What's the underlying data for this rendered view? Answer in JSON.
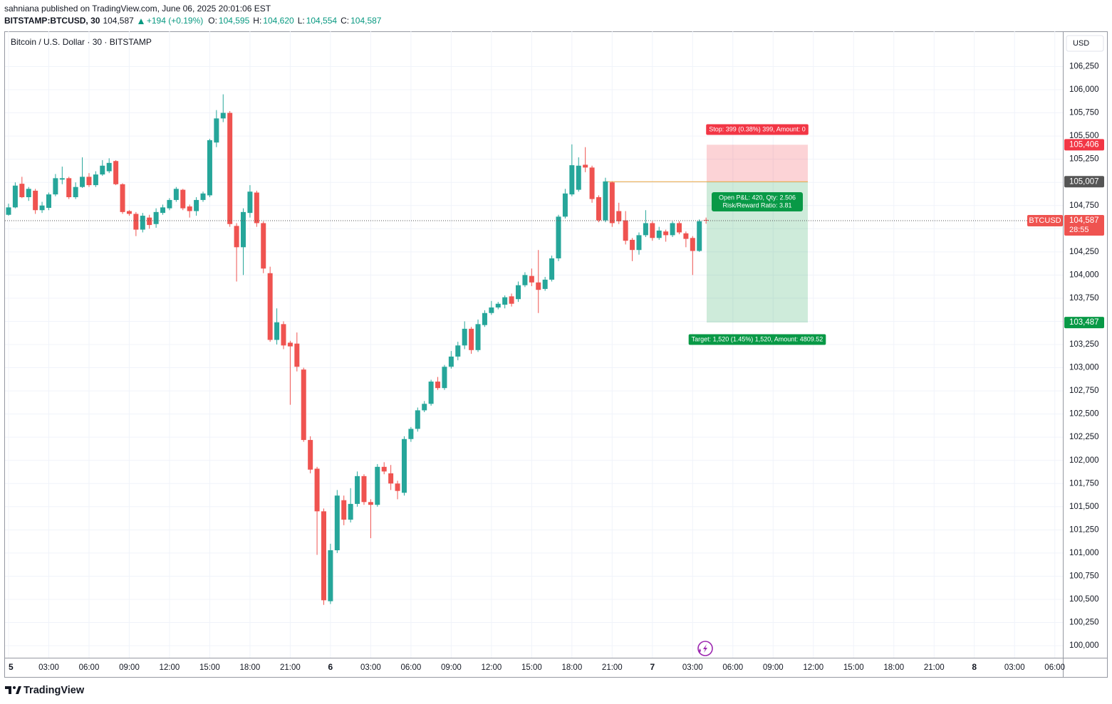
{
  "header": {
    "published": "sahniana published on TradingView.com, June 06, 2025 20:01:06 EST",
    "symbol": "BITSTAMP:BTCUSD, 30",
    "last": "104,587",
    "change": "+194 (+0.19%)",
    "ohlc": [
      {
        "key": "O:",
        "value": "104,595"
      },
      {
        "key": "H:",
        "value": "104,620"
      },
      {
        "key": "L:",
        "value": "104,554"
      },
      {
        "key": "C:",
        "value": "104,587"
      }
    ]
  },
  "chart_data": {
    "type": "candlestick",
    "title": "Bitcoin / U.S. Dollar · 30 · BITSTAMP",
    "currency": "USD",
    "up_color": "#26a69a",
    "down_color": "#ef5350",
    "grid": true,
    "open": [
      104650,
      104730,
      104985,
      104840,
      104910,
      104700,
      104725,
      104870,
      105030,
      105045,
      104840,
      104950,
      105060,
      104970,
      105085,
      105120,
      105230,
      104980,
      104690,
      104660,
      104490,
      104620,
      104550,
      104670,
      104720,
      104810,
      104920,
      104740,
      104690,
      104810,
      104860,
      105430,
      105690,
      105750,
      104530,
      104300,
      104670,
      104890,
      104560,
      104020,
      103300,
      103470,
      103270,
      103260,
      102980,
      102220,
      101910,
      101450,
      100480,
      101030,
      101570,
      101360,
      101530,
      101830,
      101550,
      101520,
      101930,
      101860,
      101750,
      101650,
      102230,
      102340,
      102540,
      102610,
      102850,
      102780,
      103010,
      103120,
      103240,
      103420,
      103190,
      103460,
      103590,
      103650,
      103680,
      103770,
      103740,
      103890,
      103990,
      103920,
      103850,
      103950,
      104180,
      104630,
      104870,
      104920,
      105190,
      105160,
      104840,
      104590,
      105000,
      104690,
      104590,
      104380,
      104270,
      104430,
      104560,
      104400,
      104470,
      104430,
      104560,
      104450,
      104400,
      104260,
      104595
    ],
    "high": [
      104770,
      105000,
      105060,
      104950,
      104930,
      104790,
      104890,
      105090,
      105170,
      105060,
      105000,
      105270,
      105100,
      105120,
      105240,
      105260,
      105240,
      104990,
      104700,
      104680,
      104670,
      104650,
      104720,
      104760,
      104830,
      104950,
      104930,
      104760,
      104840,
      104900,
      105470,
      105780,
      105950,
      105770,
      104560,
      104720,
      104970,
      104910,
      104580,
      104090,
      103640,
      103500,
      103290,
      103380,
      103000,
      102260,
      101930,
      101480,
      101100,
      101680,
      101620,
      101700,
      101880,
      101850,
      101580,
      101960,
      101980,
      101950,
      101780,
      102260,
      102360,
      102570,
      102640,
      102870,
      102900,
      103030,
      103180,
      103280,
      103500,
      103440,
      103520,
      103620,
      103720,
      103710,
      103780,
      103800,
      103930,
      104030,
      104070,
      104270,
      103980,
      104210,
      104650,
      104930,
      105410,
      105270,
      105380,
      105180,
      104860,
      105050,
      105010,
      104780,
      104690,
      104400,
      104460,
      104700,
      104580,
      104520,
      104490,
      104580,
      104580,
      104470,
      104420,
      104600,
      104620
    ],
    "low": [
      104640,
      104720,
      104830,
      104800,
      104660,
      104670,
      104700,
      104850,
      104980,
      104820,
      104820,
      104940,
      104950,
      104950,
      105070,
      105100,
      104970,
      104660,
      104640,
      104420,
      104460,
      104500,
      104510,
      104650,
      104700,
      104790,
      104700,
      104620,
      104640,
      104790,
      104840,
      105380,
      105650,
      104520,
      103930,
      104000,
      104620,
      104520,
      104020,
      103280,
      103250,
      103200,
      102600,
      102960,
      102200,
      101860,
      100980,
      100440,
      100450,
      101000,
      101300,
      101330,
      101500,
      101520,
      101160,
      101500,
      101850,
      101680,
      101580,
      101620,
      102200,
      102310,
      102520,
      102590,
      102760,
      102760,
      102990,
      103080,
      103200,
      103150,
      103170,
      103440,
      103570,
      103630,
      103640,
      103660,
      103710,
      103870,
      103880,
      103590,
      103830,
      103930,
      104150,
      104610,
      104850,
      104900,
      105110,
      104780,
      104570,
      104570,
      104520,
      104550,
      104330,
      104150,
      104220,
      104410,
      104370,
      104380,
      104360,
      104410,
      104440,
      104300,
      104000,
      104250,
      104554
    ],
    "close": [
      104730,
      104965,
      104840,
      104930,
      104700,
      104750,
      104870,
      105045,
      105045,
      104840,
      104950,
      105060,
      104970,
      105085,
      105180,
      105210,
      104980,
      104680,
      104660,
      104490,
      104640,
      104540,
      104680,
      104730,
      104810,
      104930,
      104720,
      104690,
      104810,
      104880,
      105455,
      105690,
      105750,
      104550,
      104300,
      104680,
      104900,
      104560,
      104070,
      103300,
      103490,
      103240,
      103230,
      103010,
      102220,
      101900,
      101450,
      100490,
      101030,
      101620,
      101360,
      101530,
      101830,
      101550,
      101520,
      101930,
      101880,
      101750,
      101670,
      102230,
      102340,
      102540,
      102610,
      102850,
      102780,
      103010,
      103120,
      103240,
      103420,
      103190,
      103470,
      103590,
      103650,
      103690,
      103760,
      103690,
      103890,
      104000,
      103920,
      103840,
      103950,
      104180,
      104630,
      104880,
      105185,
      105180,
      105160,
      104820,
      104590,
      105010,
      104560,
      104580,
      104370,
      104270,
      104430,
      104560,
      104400,
      104480,
      104430,
      104560,
      104460,
      104390,
      104260,
      104580,
      104587
    ],
    "ylim": [
      99870,
      106630
    ],
    "yticks": [
      {
        "value": 100000,
        "label": "100,000"
      },
      {
        "value": 100250,
        "label": "100,250"
      },
      {
        "value": 100500,
        "label": "100,500"
      },
      {
        "value": 100750,
        "label": "100,750"
      },
      {
        "value": 101000,
        "label": "101,000"
      },
      {
        "value": 101250,
        "label": "101,250"
      },
      {
        "value": 101500,
        "label": "101,500"
      },
      {
        "value": 101750,
        "label": "101,750"
      },
      {
        "value": 102000,
        "label": "102,000"
      },
      {
        "value": 102250,
        "label": "102,250"
      },
      {
        "value": 102500,
        "label": "102,500"
      },
      {
        "value": 102750,
        "label": "102,750"
      },
      {
        "value": 103000,
        "label": "103,000"
      },
      {
        "value": 103250,
        "label": "103,250"
      },
      {
        "value": 103500,
        "label": "103,500"
      },
      {
        "value": 103750,
        "label": "103,750"
      },
      {
        "value": 104000,
        "label": "104,000"
      },
      {
        "value": 104250,
        "label": "104,250"
      },
      {
        "value": 104500,
        "label": "104,500"
      },
      {
        "value": 104750,
        "label": "104,750"
      },
      {
        "value": 105000,
        "label": "105,000"
      },
      {
        "value": 105250,
        "label": "105,250"
      },
      {
        "value": 105500,
        "label": "105,500"
      },
      {
        "value": 105750,
        "label": "105,750"
      },
      {
        "value": 106000,
        "label": "106,000"
      },
      {
        "value": 106250,
        "label": "106,250"
      }
    ],
    "xlim": [
      -0.53,
      157.2
    ],
    "xticks": [
      {
        "value": 0,
        "label": "5"
      },
      {
        "value": 6,
        "label": "03:00"
      },
      {
        "value": 12,
        "label": "06:00"
      },
      {
        "value": 18,
        "label": "09:00"
      },
      {
        "value": 24,
        "label": "12:00"
      },
      {
        "value": 30,
        "label": "15:00"
      },
      {
        "value": 36,
        "label": "18:00"
      },
      {
        "value": 42,
        "label": "21:00"
      },
      {
        "value": 48,
        "label": "6"
      },
      {
        "value": 54,
        "label": "03:00"
      },
      {
        "value": 60,
        "label": "06:00"
      },
      {
        "value": 66,
        "label": "09:00"
      },
      {
        "value": 72,
        "label": "12:00"
      },
      {
        "value": 78,
        "label": "15:00"
      },
      {
        "value": 84,
        "label": "18:00"
      },
      {
        "value": 90,
        "label": "21:00"
      },
      {
        "value": 96,
        "label": "7"
      },
      {
        "value": 102,
        "label": "03:00"
      },
      {
        "value": 108,
        "label": "06:00"
      },
      {
        "value": 114,
        "label": "09:00"
      },
      {
        "value": 120,
        "label": "12:00"
      },
      {
        "value": 126,
        "label": "15:00"
      },
      {
        "value": 132,
        "label": "18:00"
      },
      {
        "value": 138,
        "label": "21:00"
      },
      {
        "value": 144,
        "label": "8"
      },
      {
        "value": 150,
        "label": "03:00"
      },
      {
        "value": 156,
        "label": "06:00"
      }
    ],
    "last_price": {
      "value": 104587,
      "label": "104,587"
    },
    "countdown": "28:55",
    "symbol_tag": "BTCUSD",
    "position": {
      "stop": {
        "value": 105406,
        "label": "105,406"
      },
      "entry": {
        "value": 105007,
        "label": "105,007"
      },
      "target": {
        "value": 103487,
        "label": "103,487"
      },
      "stop_text": "Stop: 399 (0.38%) 399, Amount: 0",
      "pnl_text": "Open P&L: 420, Qty: 2.506",
      "ratio_text": "Risk/Reward Ratio: 3.81",
      "target_text": "Target: 1,520 (1.45%) 1,520, Amount: 4809.52"
    }
  },
  "footer": {
    "brand": "TradingView"
  }
}
